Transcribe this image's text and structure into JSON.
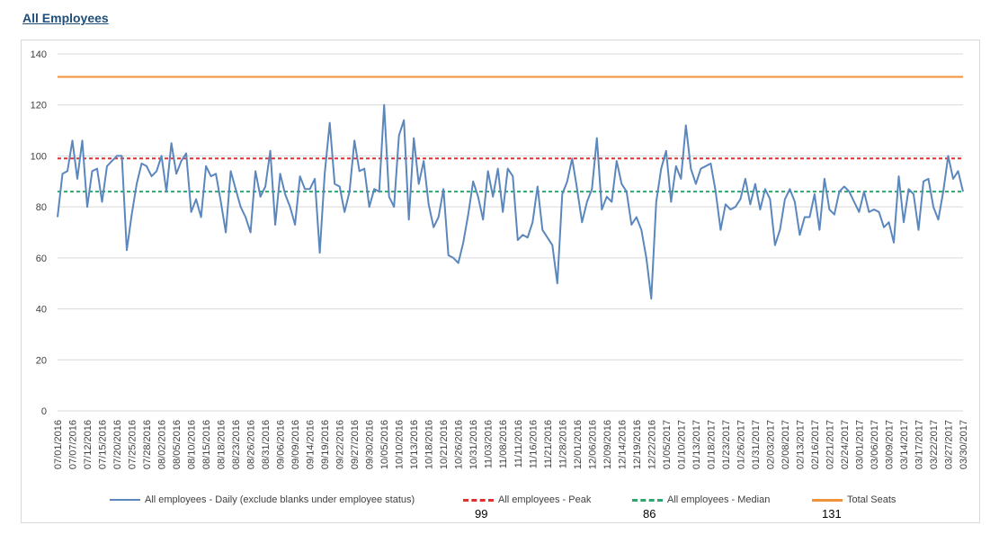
{
  "page": {
    "title": "All Employees"
  },
  "colors": {
    "daily": "#5b87bd",
    "peak": "#e03030",
    "median": "#2ea66e",
    "total": "#f0913b",
    "grid": "#d9d9d9"
  },
  "chart_data": {
    "type": "line",
    "title": "",
    "xlabel": "",
    "ylabel": "",
    "ylim": [
      0,
      140
    ],
    "yticks": [
      0,
      20,
      40,
      60,
      80,
      100,
      120,
      140
    ],
    "grid": true,
    "legend_position": "bottom",
    "x_tick_labels": [
      "07/01/2016",
      "07/07/2016",
      "07/12/2016",
      "07/15/2016",
      "07/20/2016",
      "07/25/2016",
      "07/28/2016",
      "08/02/2016",
      "08/05/2016",
      "08/10/2016",
      "08/15/2016",
      "08/18/2016",
      "08/23/2016",
      "08/26/2016",
      "08/31/2016",
      "09/06/2016",
      "09/09/2016",
      "09/14/2016",
      "09/19/2016",
      "09/22/2016",
      "09/27/2016",
      "09/30/2016",
      "10/05/2016",
      "10/10/2016",
      "10/13/2016",
      "10/18/2016",
      "10/21/2016",
      "10/26/2016",
      "10/31/2016",
      "11/03/2016",
      "11/08/2016",
      "11/11/2016",
      "11/16/2016",
      "11/21/2016",
      "11/28/2016",
      "12/01/2016",
      "12/06/2016",
      "12/09/2016",
      "12/14/2016",
      "12/19/2016",
      "12/22/2016",
      "01/05/2017",
      "01/10/2017",
      "01/13/2017",
      "01/18/2017",
      "01/23/2017",
      "01/26/2017",
      "01/31/2017",
      "02/03/2017",
      "02/08/2017",
      "02/13/2017",
      "02/16/2017",
      "02/21/2017",
      "02/24/2017",
      "03/01/2017",
      "03/06/2017",
      "03/09/2017",
      "03/14/2017",
      "03/17/2017",
      "03/22/2017",
      "03/27/2017",
      "03/30/2017"
    ],
    "series": [
      {
        "name": "All employees - Daily (exclude blanks under employee status)",
        "values": [
          76,
          93,
          94,
          106,
          91,
          106,
          80,
          94,
          95,
          82,
          96,
          98,
          100,
          100,
          63,
          77,
          89,
          97,
          96,
          92,
          94,
          100,
          86,
          105,
          93,
          98,
          101,
          78,
          83,
          76,
          96,
          92,
          93,
          82,
          70,
          94,
          87,
          80,
          76,
          70,
          94,
          84,
          88,
          102,
          73,
          93,
          85,
          80,
          73,
          92,
          87,
          87,
          91,
          62,
          93,
          113,
          89,
          88,
          78,
          86,
          106,
          94,
          95,
          80,
          87,
          86,
          120,
          84,
          80,
          108,
          114,
          75,
          107,
          89,
          98,
          81,
          72,
          76,
          87,
          61,
          60,
          58,
          66,
          77,
          90,
          84,
          75,
          94,
          84,
          95,
          78,
          95,
          92,
          67,
          69,
          68,
          74,
          88,
          71,
          68,
          65,
          50,
          85,
          90,
          99,
          87,
          74,
          82,
          87,
          107,
          79,
          84,
          82,
          98,
          89,
          86,
          73,
          76,
          71,
          60,
          44,
          82,
          95,
          102,
          82,
          96,
          91,
          112,
          95,
          89,
          95,
          96,
          97,
          86,
          71,
          81,
          79,
          80,
          83,
          91,
          81,
          89,
          79,
          87,
          83,
          65,
          71,
          83,
          87,
          82,
          69,
          76,
          76,
          85,
          71,
          91,
          79,
          77,
          86,
          88,
          86,
          82,
          78,
          86,
          78,
          79,
          78,
          72,
          74,
          66,
          92,
          74,
          87,
          85,
          71,
          90,
          91,
          80,
          75,
          86,
          100,
          91,
          94,
          86
        ]
      },
      {
        "name": "All employees - Peak",
        "value": 99,
        "value_label": "99"
      },
      {
        "name": "All employees - Median",
        "value": 86,
        "value_label": "86"
      },
      {
        "name": "Total Seats",
        "value": 131,
        "value_label": "131"
      }
    ]
  }
}
